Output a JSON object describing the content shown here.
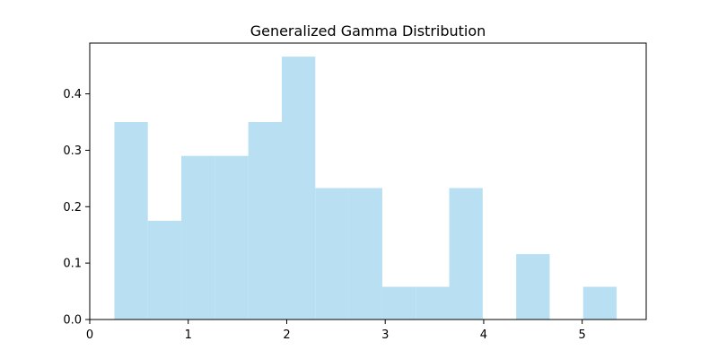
{
  "chart_data": {
    "type": "bar",
    "title": "Generalized Gamma Distribution",
    "xlabel": "",
    "ylabel": "",
    "xlim": [
      0.0,
      5.65
    ],
    "ylim": [
      0.0,
      0.49
    ],
    "grid": false,
    "bar_color": "#b8e0f2",
    "bins": [
      {
        "x0": 0.25,
        "x1": 0.59,
        "value": 0.35
      },
      {
        "x0": 0.59,
        "x1": 0.93,
        "value": 0.175
      },
      {
        "x0": 0.93,
        "x1": 1.27,
        "value": 0.29
      },
      {
        "x0": 1.27,
        "x1": 1.61,
        "value": 0.29
      },
      {
        "x0": 1.61,
        "x1": 1.95,
        "value": 0.35
      },
      {
        "x0": 1.95,
        "x1": 2.29,
        "value": 0.466
      },
      {
        "x0": 2.29,
        "x1": 2.63,
        "value": 0.233
      },
      {
        "x0": 2.63,
        "x1": 2.97,
        "value": 0.233
      },
      {
        "x0": 2.97,
        "x1": 3.31,
        "value": 0.058
      },
      {
        "x0": 3.31,
        "x1": 3.65,
        "value": 0.058
      },
      {
        "x0": 3.65,
        "x1": 3.99,
        "value": 0.233
      },
      {
        "x0": 3.99,
        "x1": 4.33,
        "value": 0.0
      },
      {
        "x0": 4.33,
        "x1": 4.67,
        "value": 0.116
      },
      {
        "x0": 4.67,
        "x1": 5.01,
        "value": 0.0
      },
      {
        "x0": 5.01,
        "x1": 5.35,
        "value": 0.058
      }
    ],
    "x_ticks": [
      {
        "value": 0,
        "label": "0"
      },
      {
        "value": 1,
        "label": "1"
      },
      {
        "value": 2,
        "label": "2"
      },
      {
        "value": 3,
        "label": "3"
      },
      {
        "value": 4,
        "label": "4"
      },
      {
        "value": 5,
        "label": "5"
      }
    ],
    "y_ticks": [
      {
        "value": 0.0,
        "label": "0.0"
      },
      {
        "value": 0.1,
        "label": "0.1"
      },
      {
        "value": 0.2,
        "label": "0.2"
      },
      {
        "value": 0.3,
        "label": "0.3"
      },
      {
        "value": 0.4,
        "label": "0.4"
      }
    ]
  }
}
